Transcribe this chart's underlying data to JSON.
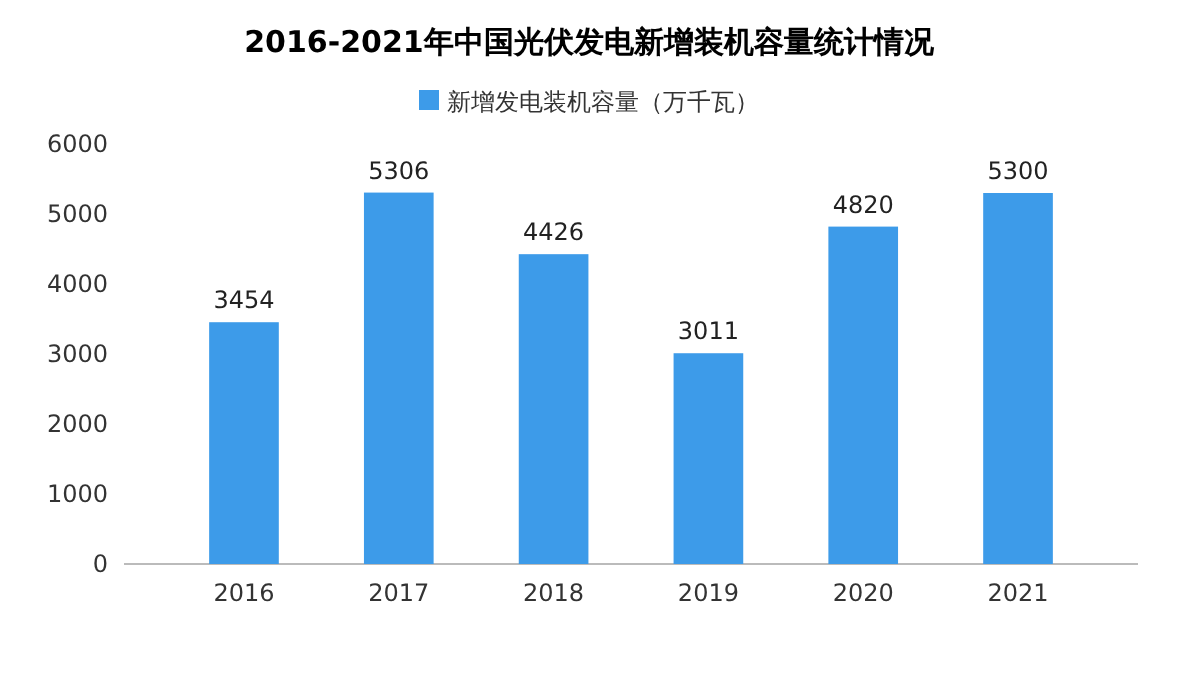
{
  "chart_data": {
    "type": "bar",
    "title": "2016-2021年中国光伏发电新增装机容量统计情况",
    "categories": [
      "2016",
      "2017",
      "2018",
      "2019",
      "2020",
      "2021"
    ],
    "series": [
      {
        "name": "新增发电装机容量（万千瓦）",
        "color": "#3d9be9",
        "values": [
          3454,
          5306,
          4426,
          3011,
          4820,
          5300
        ]
      }
    ],
    "ylim": [
      0,
      6000
    ],
    "yticks": [
      0,
      1000,
      2000,
      3000,
      4000,
      5000,
      6000
    ],
    "grid": false,
    "legend": "top",
    "data_labels": true
  }
}
